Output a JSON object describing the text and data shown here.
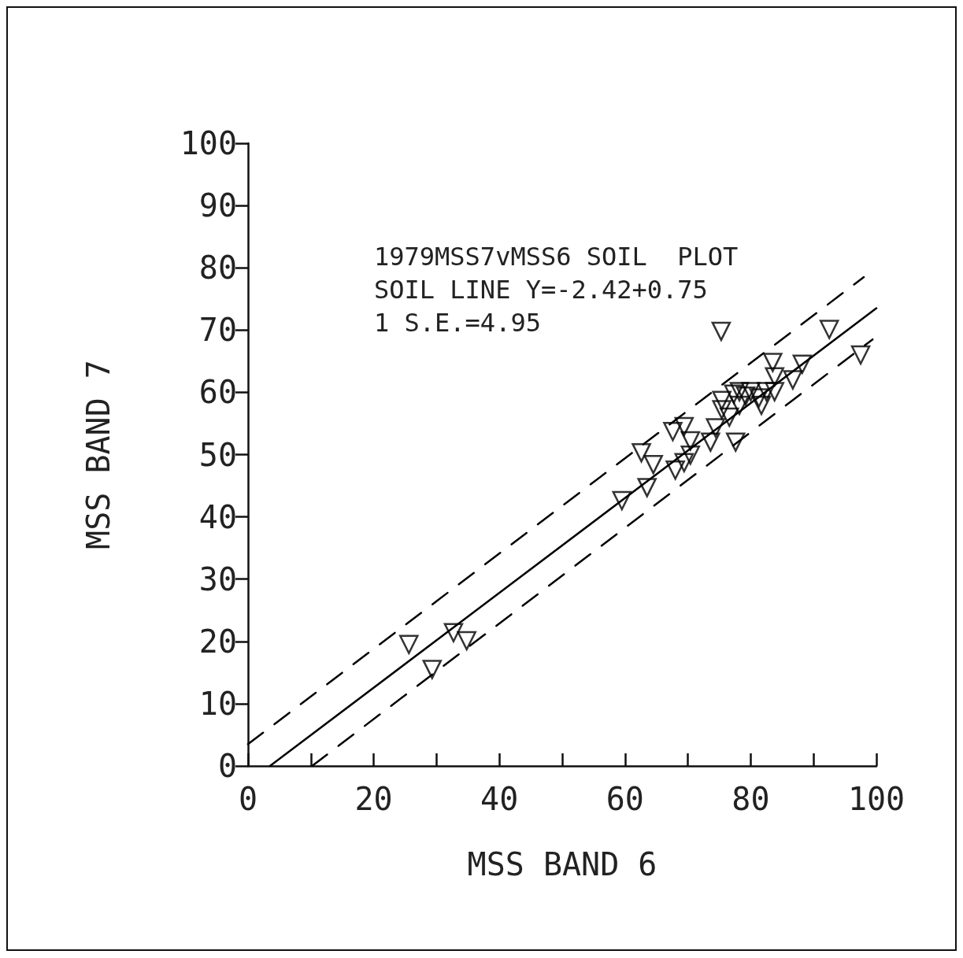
{
  "chart_data": {
    "type": "scatter",
    "xlabel": "MSS BAND 6",
    "ylabel": "MSS BAND 7",
    "annotations": [
      "1979MSS7vMSS6 SOIL  PLOT",
      "SOIL LINE Y=-2.42+0.75",
      "1 S.E.=4.95"
    ],
    "xlim": [
      0,
      100
    ],
    "ylim": [
      0,
      100
    ],
    "xticks": [
      0,
      {
        "value": 10,
        "label": null
      },
      20,
      {
        "value": 30,
        "label": null
      },
      40,
      {
        "value": 50,
        "label": null
      },
      60,
      {
        "value": 70,
        "label": null
      },
      80,
      {
        "value": 90,
        "label": null
      },
      100
    ],
    "yticks": [
      0,
      10,
      20,
      30,
      40,
      50,
      60,
      70,
      80,
      90,
      100
    ],
    "marker": "triangle",
    "series": [
      {
        "color": "#000000",
        "x": [
          25.6,
          29.3,
          32.7,
          34.8,
          59.5,
          63.5,
          62.6,
          64.5,
          67.6,
          69.4,
          70.4,
          68.0,
          69.4,
          70.4,
          73.6,
          74.4,
          75.4,
          75.3,
          75.4,
          77.6,
          77.3,
          78.2,
          79.2,
          80.0,
          81.3,
          81.7,
          82.5,
          83.5,
          83.8,
          83.8,
          86.7,
          88.2,
          92.5,
          97.5,
          78.2,
          76.6
        ],
        "values": [
          19.5,
          15.5,
          21.4,
          20.1,
          42.6,
          44.7,
          50.3,
          48.4,
          53.7,
          54.5,
          52.2,
          47.5,
          48.7,
          49.9,
          52.0,
          54.3,
          57.2,
          69.8,
          58.7,
          52.0,
          59.7,
          57.9,
          59.4,
          60.1,
          59.1,
          57.9,
          60.1,
          64.8,
          62.5,
          60.1,
          62.0,
          64.5,
          70.1,
          66.0,
          60.1,
          56.0
        ]
      },
      {
        "type": "line",
        "marker": "none",
        "color": "#000000",
        "line_style": "solid",
        "x": [
          3.5,
          100
        ],
        "values": [
          0,
          73.5
        ]
      },
      {
        "type": "line",
        "marker": "none",
        "color": "#000000",
        "line_style": "dashed",
        "x": [
          0,
          98
        ],
        "values": [
          3.5,
          78.5
        ]
      },
      {
        "type": "line",
        "marker": "none",
        "color": "#000000",
        "line_style": "dashed",
        "x": [
          10.2,
          99.4
        ],
        "values": [
          0,
          68.5
        ]
      }
    ]
  }
}
